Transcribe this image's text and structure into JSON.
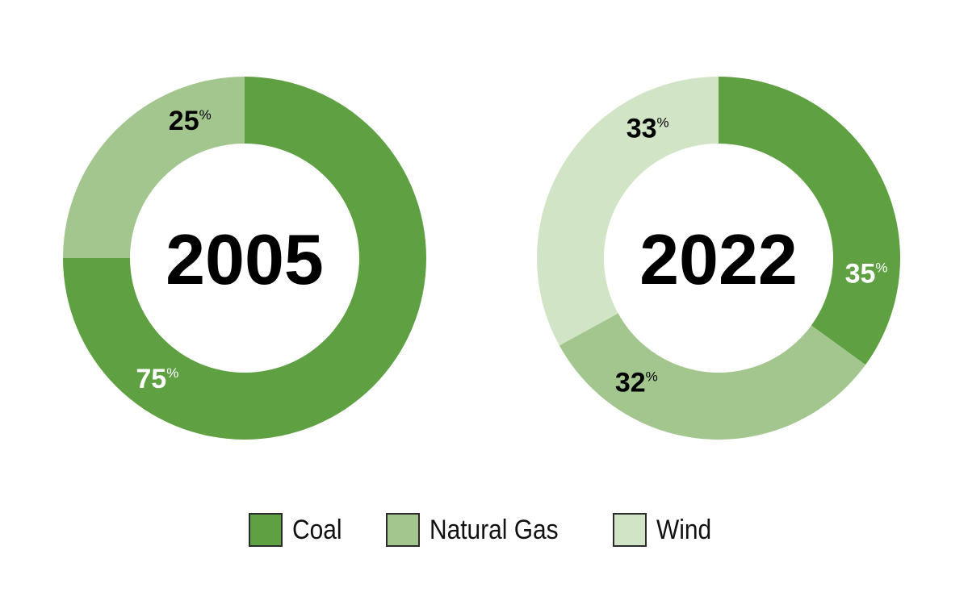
{
  "colors": {
    "Coal": "#5fa043",
    "Natural Gas": "#a3c68e",
    "Wind": "#d1e5c6"
  },
  "legend": {
    "items": [
      {
        "label": "Coal",
        "color": "#5fa043"
      },
      {
        "label": "Natural Gas",
        "color": "#a3c68e"
      },
      {
        "label": "Wind",
        "color": "#d1e5c6"
      }
    ],
    "placement": "bottom-center"
  },
  "chart_data": [
    {
      "type": "pie",
      "variant": "donut",
      "title": "2005",
      "slices": [
        {
          "label": "Coal",
          "value": 75,
          "display": "75",
          "unit": "%"
        },
        {
          "label": "Natural Gas",
          "value": 25,
          "display": "25",
          "unit": "%"
        }
      ]
    },
    {
      "type": "pie",
      "variant": "donut",
      "title": "2022",
      "slices": [
        {
          "label": "Coal",
          "value": 35,
          "display": "35",
          "unit": "%"
        },
        {
          "label": "Natural Gas",
          "value": 32,
          "display": "32",
          "unit": "%"
        },
        {
          "label": "Wind",
          "value": 33,
          "display": "33",
          "unit": "%"
        }
      ]
    }
  ]
}
